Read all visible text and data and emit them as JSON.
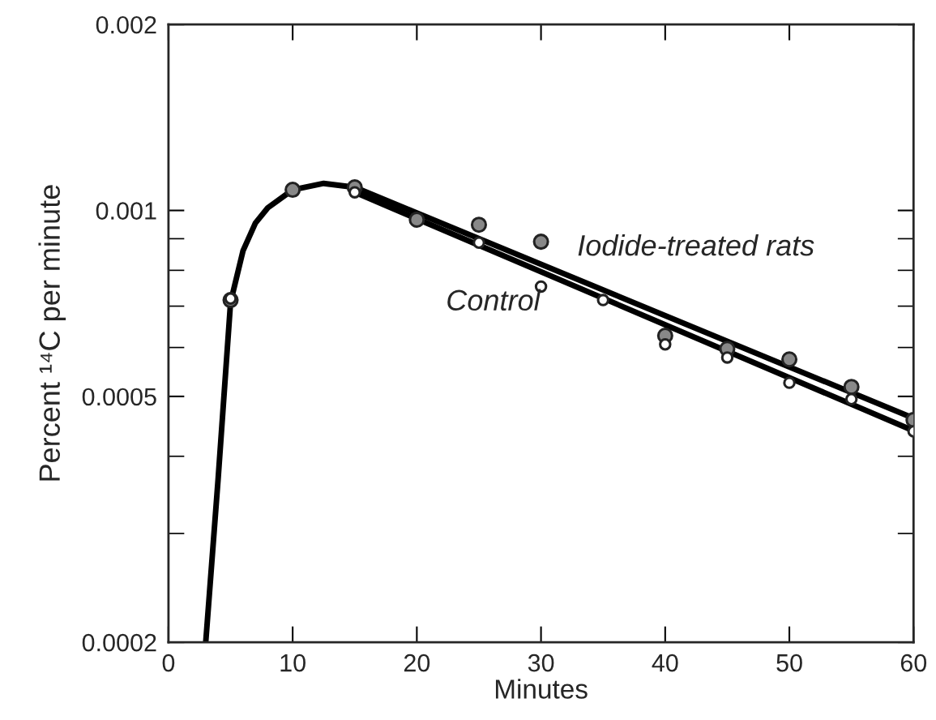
{
  "chart_data": {
    "type": "scatter",
    "xlabel": "Minutes",
    "ylabel": "Percent ¹⁴C per minute",
    "log": "y",
    "xlim": [
      0,
      60
    ],
    "ylim": [
      0.0002,
      0.002
    ],
    "xticks": [
      0,
      10,
      20,
      30,
      40,
      50,
      60
    ],
    "yticks": [
      {
        "value": 0.0002,
        "label": "0.0002"
      },
      {
        "value": 0.0005,
        "label": "0.0005"
      },
      {
        "value": 0.001,
        "label": "0.001"
      },
      {
        "value": 0.002,
        "label": "0.002"
      }
    ],
    "grid": false,
    "marker": "circle",
    "series": [
      {
        "color": "#222222",
        "x": [
          5,
          10,
          15,
          20,
          25,
          30,
          40,
          45,
          50,
          55,
          60
        ],
        "values": [
          0.000716,
          0.00108,
          0.00109,
          0.000966,
          0.000948,
          0.00089,
          0.000627,
          0.000597,
          0.000574,
          0.000518,
          0.000458
        ]
      },
      {
        "color": "#222222",
        "x": [
          5,
          15,
          25,
          30,
          35,
          40,
          45,
          50,
          55,
          60
        ],
        "values": [
          0.00072,
          0.00107,
          0.000887,
          0.000753,
          0.000716,
          0.000607,
          0.000578,
          0.000526,
          0.000495,
          0.000439
        ]
      },
      {
        "type": "line",
        "marker": "none",
        "color": "#000000",
        "line_style": "solid",
        "x": [
          3,
          4,
          5,
          6,
          7,
          8,
          10,
          12.5,
          15
        ],
        "values": [
          0.0002,
          0.000368,
          0.00071,
          0.00086,
          0.000954,
          0.00101,
          0.00108,
          0.001106,
          0.00109
        ]
      },
      {
        "type": "line",
        "marker": "none",
        "name": "Iodide-treated rats",
        "color": "#000000",
        "line_style": "solid",
        "x": [
          15,
          60
        ],
        "values": [
          0.00109,
          0.000461
        ]
      },
      {
        "type": "line",
        "marker": "none",
        "name": "Control",
        "color": "#000000",
        "line_style": "solid",
        "x": [
          15,
          60
        ],
        "values": [
          0.00107,
          0.00044
        ]
      }
    ]
  }
}
